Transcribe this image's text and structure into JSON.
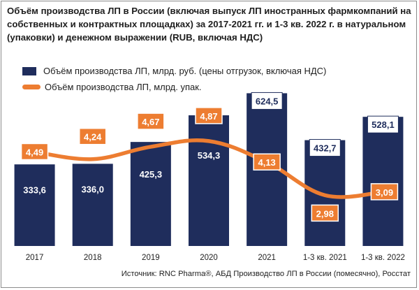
{
  "chart_data": {
    "type": "bar",
    "title": "Объём производства ЛП в России (включая выпуск ЛП иностранных фармкомпаний на собственных и контрактных площадках) за 2017-2021 гг. и 1-3 кв. 2022 г. в натуральном (упаковки) и денежном выражении (RUB, включая НДС)",
    "categories": [
      "2017",
      "2018",
      "2019",
      "2020",
      "2021",
      "1-3 кв. 2021",
      "1-3 кв. 2022"
    ],
    "series": [
      {
        "name": "Объём производства ЛП, млрд. руб. (цены отгрузок, включая НДС)",
        "type": "bar",
        "values": [
          333.6,
          336.0,
          425.3,
          534.3,
          624.5,
          432.7,
          528.1
        ],
        "labels": [
          "333,6",
          "336,0",
          "425,3",
          "534,3",
          "624,5",
          "432,7",
          "528,1"
        ]
      },
      {
        "name": "Объём производства ЛП, млрд. упак.",
        "type": "line",
        "values": [
          4.49,
          4.24,
          4.67,
          4.87,
          4.13,
          2.98,
          3.09
        ],
        "labels": [
          "4,49",
          "4,24",
          "4,67",
          "4,87",
          "4,13",
          "2,98",
          "3,09"
        ]
      }
    ],
    "colors": {
      "bars": "#1f2d5c",
      "line": "#ed7d31",
      "label_bg": "#ed7d31",
      "bar_label_bg": "#ffffff"
    },
    "legend_position": "top-left",
    "grid": false
  },
  "source": "Источник: RNC Pharma®, АБД Производство ЛП в России (помесячно), Росстат"
}
